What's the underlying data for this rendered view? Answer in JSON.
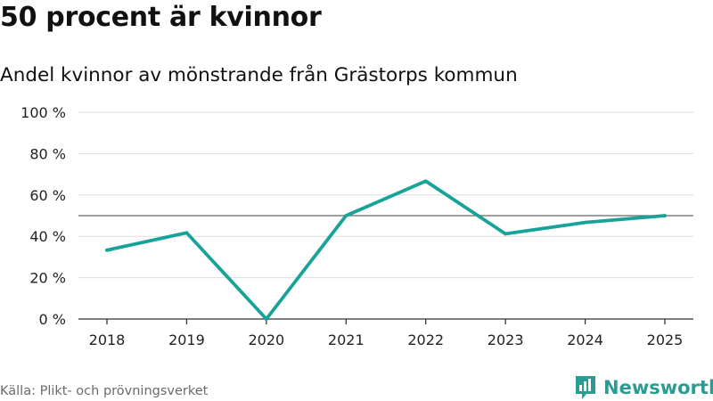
{
  "header": {
    "title": "50 procent är kvinnor",
    "subtitle": "Andel kvinnor av mönstrande från Grästorps kommun"
  },
  "footer": {
    "source": "Källa: Plikt- och prövningsverket",
    "brand": "Newsworthy"
  },
  "colors": {
    "line": "#17a398",
    "reference": "#666666",
    "grid": "#dddddd",
    "brand": "#2a9d93"
  },
  "chart_data": {
    "type": "line",
    "title": "50 procent är kvinnor",
    "subtitle": "Andel kvinnor av mönstrande från Grästorps kommun",
    "xlabel": "",
    "ylabel": "",
    "categories": [
      "2018",
      "2019",
      "2020",
      "2021",
      "2022",
      "2023",
      "2024",
      "2025"
    ],
    "series": [
      {
        "name": "Andel kvinnor",
        "values": [
          33.3,
          41.7,
          0,
          50,
          66.7,
          41.2,
          46.7,
          50
        ]
      }
    ],
    "reference_line": 50,
    "ylim": [
      0,
      100
    ],
    "yticks": [
      0,
      20,
      40,
      60,
      80,
      100
    ],
    "ytick_labels": [
      "0 %",
      "20 %",
      "40 %",
      "60 %",
      "80 %",
      "100 %"
    ],
    "grid": true
  }
}
